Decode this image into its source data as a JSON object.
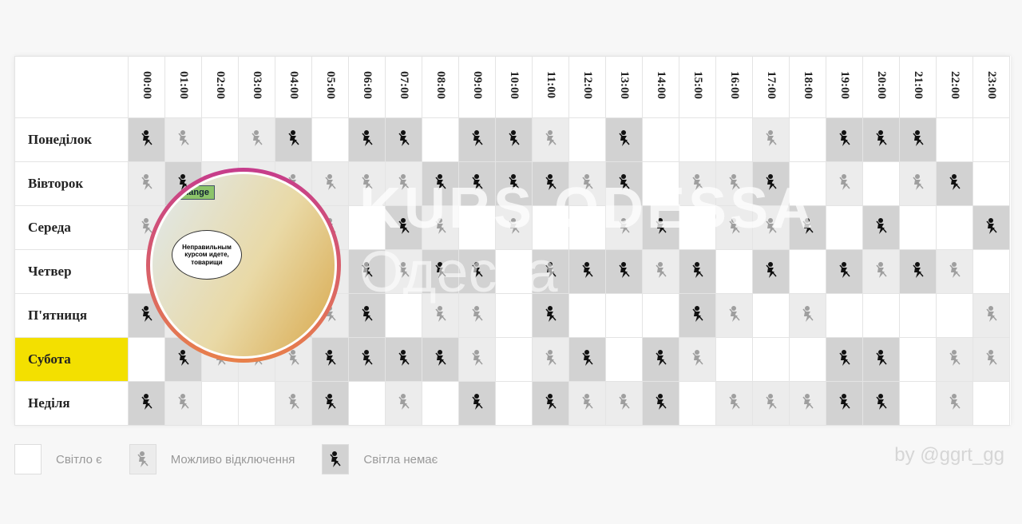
{
  "hours": [
    "00:00",
    "01:00",
    "02:00",
    "03:00",
    "04:00",
    "05:00",
    "06:00",
    "07:00",
    "08:00",
    "09:00",
    "10:00",
    "11:00",
    "12:00",
    "13:00",
    "14:00",
    "15:00",
    "16:00",
    "17:00",
    "18:00",
    "19:00",
    "20:00",
    "21:00",
    "22:00",
    "23:00"
  ],
  "days": [
    {
      "label": "Понеділок",
      "highlight": false,
      "states": [
        2,
        1,
        0,
        1,
        2,
        0,
        2,
        2,
        0,
        2,
        2,
        1,
        0,
        2,
        0,
        0,
        0,
        1,
        0,
        2,
        2,
        2,
        0,
        0
      ]
    },
    {
      "label": "Вівторок",
      "highlight": false,
      "states": [
        1,
        2,
        1,
        1,
        1,
        1,
        1,
        1,
        2,
        2,
        2,
        2,
        1,
        2,
        0,
        1,
        1,
        2,
        0,
        1,
        0,
        1,
        2,
        0
      ]
    },
    {
      "label": "Середа",
      "highlight": false,
      "states": [
        1,
        2,
        2,
        1,
        1,
        1,
        0,
        2,
        1,
        0,
        1,
        0,
        0,
        1,
        2,
        0,
        1,
        1,
        2,
        0,
        2,
        0,
        0,
        2
      ]
    },
    {
      "label": "Четвер",
      "highlight": false,
      "states": [
        0,
        1,
        1,
        1,
        1,
        1,
        2,
        1,
        2,
        2,
        0,
        2,
        2,
        2,
        1,
        2,
        0,
        2,
        0,
        2,
        1,
        2,
        1,
        0
      ]
    },
    {
      "label": "П'ятниця",
      "highlight": false,
      "states": [
        2,
        1,
        1,
        2,
        2,
        1,
        2,
        0,
        1,
        1,
        0,
        2,
        0,
        0,
        0,
        2,
        1,
        0,
        1,
        0,
        0,
        0,
        0,
        1
      ]
    },
    {
      "label": "Субота",
      "highlight": true,
      "states": [
        0,
        2,
        1,
        1,
        1,
        2,
        2,
        2,
        2,
        1,
        0,
        1,
        2,
        0,
        2,
        1,
        0,
        0,
        0,
        2,
        2,
        0,
        1,
        1
      ]
    },
    {
      "label": "Неділя",
      "highlight": false,
      "states": [
        2,
        1,
        0,
        0,
        1,
        2,
        0,
        1,
        0,
        2,
        0,
        2,
        1,
        1,
        2,
        0,
        1,
        1,
        1,
        2,
        2,
        0,
        1,
        0
      ]
    }
  ],
  "legend": {
    "on": "Світло є",
    "maybe": "Можливо відключення",
    "off": "Світла немає"
  },
  "credit": "by @ggrt_gg",
  "watermark": {
    "line1": "KURS ODESSA",
    "line2": "Одесса"
  },
  "overlay": {
    "sign": "Exchange",
    "bubble": "Неправильным курсом идете, товарищи"
  },
  "colors": {
    "on": "#ffffff",
    "maybe": "#ececec",
    "off": "#d2d2d2",
    "highlight": "#f3e000"
  }
}
